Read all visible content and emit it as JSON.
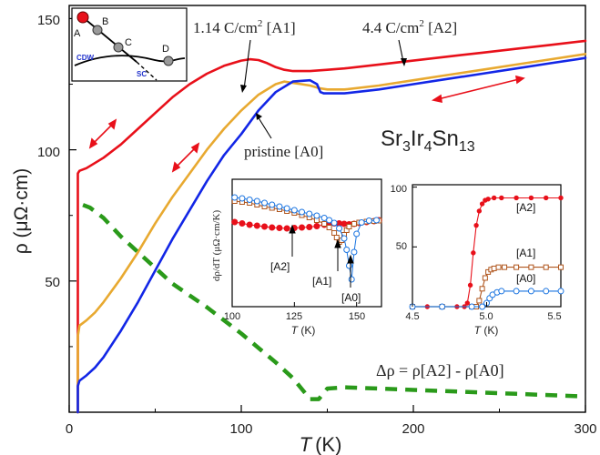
{
  "chart_data": [
    {
      "type": "line",
      "xlabel_var": "T",
      "xlabel_unit": "(K)",
      "ylabel": "ρ (μΩ·cm)",
      "xlim": [
        0,
        300
      ],
      "ylim": [
        0,
        155
      ],
      "xticks": [
        "0",
        "100",
        "200",
        "300"
      ],
      "yticks": [
        "50",
        "100",
        "150"
      ],
      "compound": "Sr3Ir4Sn13",
      "compound_parts": {
        "a": "Sr",
        "b": "3",
        "c": "Ir",
        "d": "4",
        "e": "Sn",
        "f": "13"
      },
      "annotations": {
        "a2_label": "4.4 C/cm",
        "a2_tag": " [A2]",
        "a1_label": "1.14 C/cm",
        "a1_tag": " [A1]",
        "a0_label": "pristine [A0]",
        "delta_label": "Δρ = ρ[A2] - ρ[A0]",
        "sup": "2"
      },
      "series": [
        {
          "name": "A2",
          "color": "#e8101a",
          "x": [
            5,
            5,
            5,
            6,
            10,
            20,
            30,
            40,
            50,
            60,
            70,
            80,
            90,
            100,
            105,
            110,
            115,
            120,
            125,
            130,
            140,
            150,
            160,
            180,
            200,
            220,
            240,
            260,
            280,
            300
          ],
          "y": [
            0,
            80,
            91,
            92,
            93,
            97,
            102,
            108,
            114,
            120,
            125,
            129,
            132,
            134,
            134.5,
            134.2,
            133,
            131.5,
            130.5,
            130,
            130,
            130.5,
            131,
            132.5,
            134,
            135.5,
            137,
            138.5,
            140,
            141.5
          ]
        },
        {
          "name": "A1",
          "color": "#e8a930",
          "x": [
            5,
            5,
            6,
            10,
            15,
            20,
            30,
            40,
            50,
            60,
            70,
            80,
            90,
            100,
            110,
            120,
            125,
            130,
            135,
            140,
            145,
            150,
            160,
            180,
            200,
            220,
            240,
            260,
            280,
            300
          ],
          "y": [
            0,
            29,
            33,
            35,
            38,
            42,
            51,
            61,
            72,
            82,
            91,
            100,
            108,
            115,
            121,
            125,
            126,
            125.5,
            125,
            124.5,
            123.5,
            123,
            123,
            124.5,
            126.5,
            128.5,
            130.5,
            132.5,
            134.5,
            136.5
          ]
        },
        {
          "name": "A0",
          "color": "#1226e6",
          "x": [
            5,
            5,
            6,
            10,
            15,
            20,
            30,
            40,
            50,
            60,
            70,
            80,
            90,
            100,
            110,
            120,
            130,
            140,
            144,
            146,
            148,
            150,
            160,
            180,
            200,
            220,
            240,
            260,
            280,
            300
          ],
          "y": [
            0,
            10,
            12,
            14,
            17,
            21,
            31,
            42,
            54,
            66,
            77,
            88,
            98,
            106,
            115,
            122,
            126,
            126.5,
            125,
            122,
            121.5,
            121.5,
            121.5,
            123,
            125,
            127,
            129,
            131,
            133,
            135
          ]
        },
        {
          "name": "Δρ",
          "color": "#2a9a1a",
          "dashed": true,
          "x": [
            8,
            12,
            20,
            30,
            40,
            50,
            60,
            80,
            100,
            120,
            130,
            135,
            140,
            145,
            150,
            160,
            180,
            200,
            220,
            240,
            260,
            280,
            300
          ],
          "y": [
            79,
            78,
            74,
            67,
            61,
            55,
            49,
            40,
            30,
            19,
            13,
            9,
            5,
            5,
            9,
            9.5,
            9,
            8.5,
            8,
            7.5,
            7,
            6.5,
            6
          ]
        }
      ]
    },
    {
      "type": "scatter",
      "ylabel": "dρ/dT (μΩ·cm/K)",
      "xlabel_var": "T",
      "xlabel_unit": " (K)",
      "xlim": [
        100,
        160
      ],
      "xticks": [
        "100",
        "125",
        "150"
      ],
      "labels": {
        "a2": "[A2]",
        "a1": "[A1]",
        "a0": "[A0]"
      },
      "series": [
        {
          "name": "A2",
          "color": "#e8101a",
          "marker": "circle-filled",
          "x": [
            101,
            104,
            107,
            110,
            113,
            116,
            119,
            122,
            125,
            128,
            131,
            134,
            137,
            139,
            141,
            143,
            145,
            147,
            149,
            151,
            154,
            157,
            159
          ],
          "y": [
            0.06,
            0.03,
            0.0,
            -0.02,
            -0.04,
            -0.06,
            -0.07,
            -0.08,
            -0.07,
            -0.06,
            -0.05,
            -0.03,
            0.0,
            0.02,
            0.03,
            0.03,
            0.02,
            0.01,
            0.02,
            0.04,
            0.06,
            0.08,
            0.1
          ]
        },
        {
          "name": "A1",
          "color": "#b0561e",
          "marker": "square-open",
          "x": [
            101,
            104,
            107,
            110,
            113,
            116,
            119,
            122,
            125,
            128,
            131,
            134,
            137,
            139,
            141,
            142,
            143,
            144,
            145,
            146,
            147,
            149,
            151,
            154,
            157,
            159
          ],
          "y": [
            0.52,
            0.5,
            0.48,
            0.44,
            0.4,
            0.37,
            0.34,
            0.3,
            0.26,
            0.21,
            0.16,
            0.1,
            0.02,
            -0.06,
            -0.18,
            -0.28,
            -0.38,
            -0.34,
            -0.22,
            -0.12,
            -0.04,
            0.02,
            0.05,
            0.07,
            0.08,
            0.09
          ]
        },
        {
          "name": "A0",
          "color": "#1a74e0",
          "marker": "circle-open",
          "x": [
            101,
            104,
            107,
            110,
            113,
            116,
            119,
            122,
            125,
            128,
            131,
            134,
            137,
            139,
            141,
            143,
            145,
            146,
            147,
            148,
            149,
            150,
            152,
            155,
            158
          ],
          "y": [
            0.6,
            0.58,
            0.55,
            0.52,
            0.48,
            0.44,
            0.4,
            0.36,
            0.32,
            0.28,
            0.24,
            0.2,
            0.15,
            0.1,
            0.04,
            -0.08,
            -0.3,
            -0.55,
            -0.9,
            -1.2,
            -0.6,
            -0.2,
            0.05,
            0.09,
            0.1
          ]
        }
      ]
    },
    {
      "type": "scatter",
      "xlabel_var": "T",
      "xlabel_unit": " (K)",
      "xlim": [
        4.5,
        5.5
      ],
      "ylim": [
        0,
        100
      ],
      "xticks": [
        "4.5",
        "5.0",
        "5.5"
      ],
      "yticks": [
        "50",
        "100"
      ],
      "labels": {
        "a2": "[A2]",
        "a1": "[A1]",
        "a0": "[A0]"
      },
      "series": [
        {
          "name": "A2",
          "color": "#e8101a",
          "marker": "circle-filled",
          "x": [
            4.5,
            4.6,
            4.7,
            4.8,
            4.85,
            4.87,
            4.89,
            4.91,
            4.93,
            4.95,
            4.97,
            4.99,
            5.01,
            5.05,
            5.1,
            5.2,
            5.3,
            5.4,
            5.5
          ],
          "y": [
            0,
            0,
            0,
            0,
            0,
            3,
            18,
            45,
            68,
            80,
            86,
            89,
            90,
            91,
            91,
            91,
            91,
            91,
            91
          ]
        },
        {
          "name": "A1",
          "color": "#b0561e",
          "marker": "square-open",
          "x": [
            4.5,
            4.7,
            4.9,
            4.93,
            4.95,
            4.97,
            4.99,
            5.01,
            5.03,
            5.05,
            5.08,
            5.12,
            5.2,
            5.3,
            5.4,
            5.5
          ],
          "y": [
            0,
            0,
            0,
            0,
            5,
            15,
            24,
            29,
            31,
            32,
            33,
            33,
            33,
            33,
            33,
            33
          ]
        },
        {
          "name": "A0",
          "color": "#1a74e0",
          "marker": "circle-open",
          "x": [
            4.5,
            4.7,
            4.9,
            4.97,
            5.0,
            5.02,
            5.04,
            5.07,
            5.1,
            5.2,
            5.3,
            5.4,
            5.5
          ],
          "y": [
            0,
            0,
            0,
            0,
            3,
            7,
            10,
            12,
            13,
            13,
            13,
            13,
            13
          ]
        }
      ]
    }
  ],
  "phase_diagram": {
    "points": [
      "A",
      "B",
      "C",
      "D"
    ],
    "cdw_label": "CDW",
    "sc_label": "SC"
  }
}
